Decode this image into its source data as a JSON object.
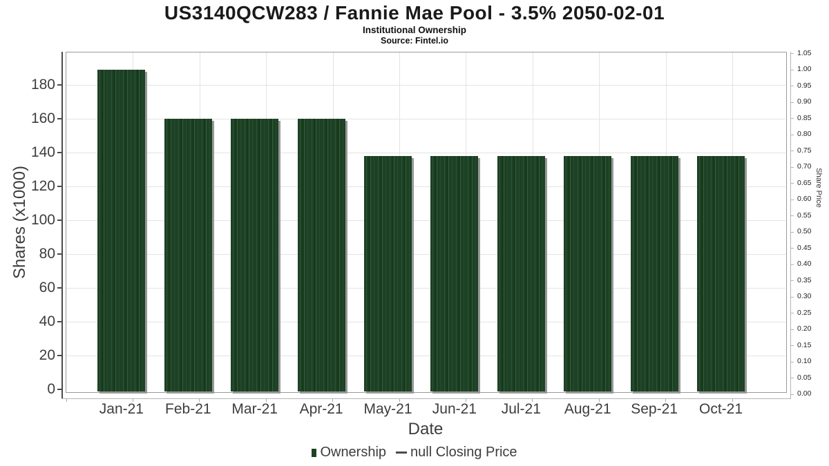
{
  "chart_data": {
    "type": "bar",
    "title": "US3140QCW283 / Fannie Mae Pool - 3.5% 2050-02-01",
    "subtitle": "Institutional Ownership",
    "source": "Source: Fintel.io",
    "xlabel": "Date",
    "ylabel": "Shares (x1000)",
    "ylabel_right": "Share Price",
    "categories": [
      "Jan-21",
      "Feb-21",
      "Mar-21",
      "Apr-21",
      "May-21",
      "Jun-21",
      "Jul-21",
      "Aug-21",
      "Sep-21",
      "Oct-21"
    ],
    "series": [
      {
        "name": "Ownership",
        "type": "bar",
        "color": "#1d4124",
        "values": [
          189,
          160,
          160,
          160,
          138,
          138,
          138,
          138,
          138,
          138
        ]
      },
      {
        "name": "null Closing Price",
        "type": "line",
        "color": "#4a4a4a",
        "values": []
      }
    ],
    "y_left": {
      "ticks": [
        0,
        20,
        40,
        60,
        80,
        100,
        120,
        140,
        160,
        180
      ],
      "lim": [
        0,
        199
      ]
    },
    "y_right": {
      "ticks": [
        "1.05",
        "1.00",
        "0.95",
        "0.90",
        "0.85",
        "0.80",
        "0.75",
        "0.70",
        "0.65",
        "0.60",
        "0.55",
        "0.50",
        "0.45",
        "0.40",
        "0.35",
        "0.30",
        "0.25",
        "0.20",
        "0.15",
        "0.10",
        "0.05",
        "0.00"
      ],
      "lim": [
        0,
        1.05
      ]
    },
    "grid": true,
    "legend_position": "bottom"
  },
  "legend": {
    "items": [
      {
        "label": "Ownership",
        "marker": "square",
        "color": "#1d4124"
      },
      {
        "label": "null Closing Price",
        "marker": "dash",
        "color": "#4a4a4a"
      }
    ]
  },
  "colors": {
    "bar_green": "#1d4124",
    "bar_shadow": "#979797",
    "gridline": "#e3e3e3",
    "plot_border": "#999999",
    "axis_text": "#3d3d3d",
    "title_text": "#1a1a1a"
  }
}
